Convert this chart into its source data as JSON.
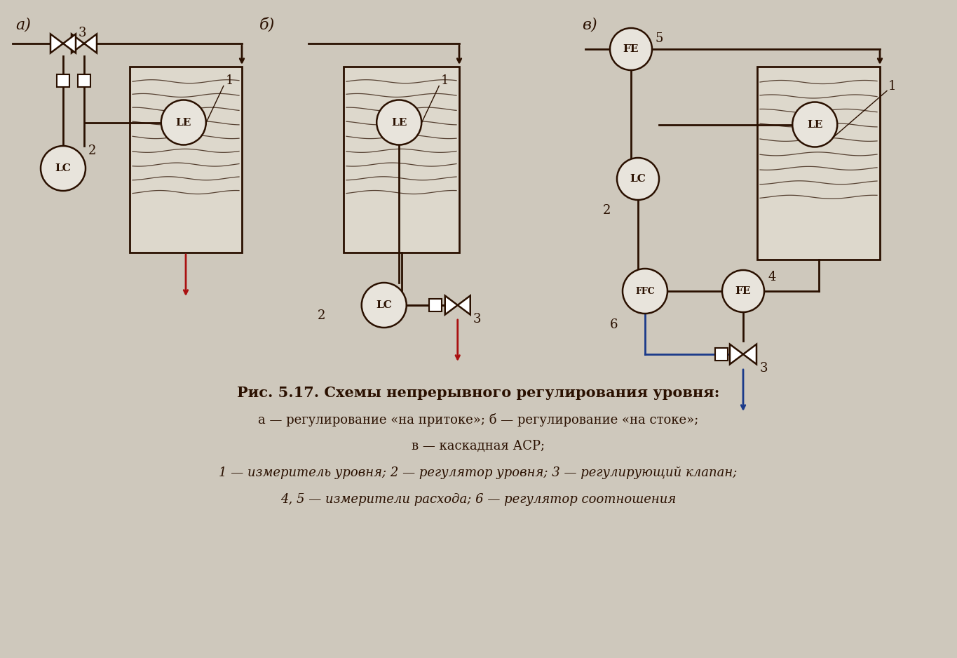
{
  "bg_color": "#cec8bc",
  "line_color": "#2a1000",
  "blue_line": "#1a3a8a",
  "red_arrow": "#aa1111",
  "circle_fill": "#e8e4dc",
  "tank_fill": "#ddd8cc",
  "title": "Рис. 5.17. Схемы непрерывного регулирования уровня:",
  "line2": "а — регулирование «на притоке»; б — регулирование «на стоке»;",
  "line3": "в — каскадная АСР;",
  "line4": "1 — измеритель уровня; 2 — регулятор уровня; 3 — регулирующий клапан;",
  "line5": "4, 5 — измерители расхода; 6 — регулятор соотношения"
}
